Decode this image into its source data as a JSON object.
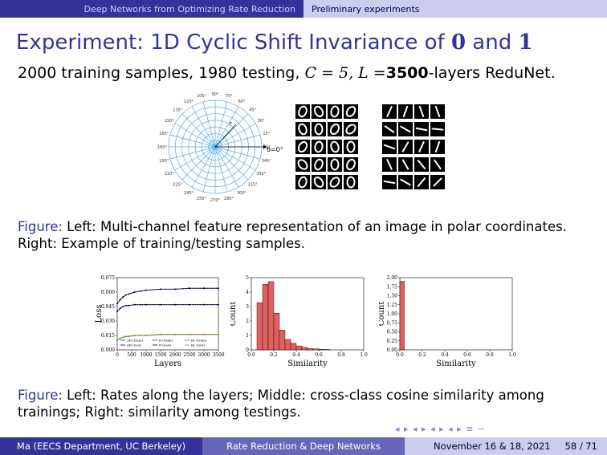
{
  "header": {
    "section_left": "Deep Networks from Optimizing Rate Reduction",
    "section_right": "Preliminary experiments"
  },
  "title": {
    "prefix": "Experiment: 1D Cyclic Shift Invariance of ",
    "zero": "0",
    "and": " and ",
    "one": "1"
  },
  "subtitle": {
    "part1": "2000 training samples, 1980 testing, ",
    "c_eq": "C = 5, L =",
    "layers": "3500",
    "part2": "-layers ReduNet."
  },
  "polar": {
    "angle_labels": [
      "0°",
      "15°",
      "30°",
      "45°",
      "60°",
      "75°",
      "90°",
      "105°",
      "120°",
      "135°",
      "150°",
      "165°",
      "180°",
      "195°",
      "210°",
      "225°",
      "240°",
      "255°",
      "270°",
      "285°",
      "300°",
      "315°",
      "330°",
      "345°"
    ],
    "center_label": "θ=0°",
    "r_label": "r"
  },
  "caption1": {
    "label": "Figure:",
    "text": " Left: Multi-channel feature representation of an image in polar coordinates. Right: Example of training/testing samples."
  },
  "chart_data": [
    {
      "type": "line",
      "xlabel": "Layers",
      "ylabel": "Loss",
      "xticks": [
        "0",
        "500",
        "1000",
        "1500",
        "2000",
        "2500",
        "3000",
        "3500"
      ],
      "yticks": [
        "0.000",
        "0.015",
        "0.030",
        "0.045",
        "0.060",
        "0.075"
      ],
      "xlim": [
        0,
        3500
      ],
      "ylim": [
        0,
        0.075
      ],
      "x": [
        0,
        100,
        200,
        300,
        400,
        600,
        800,
        1000,
        1500,
        2000,
        2500,
        3000,
        3500
      ],
      "series": [
        {
          "name": "ΔR (train)",
          "color": "#1f3fbf",
          "values": [
            0.048,
            0.052,
            0.055,
            0.057,
            0.058,
            0.06,
            0.061,
            0.062,
            0.063,
            0.063,
            0.064,
            0.064,
            0.064
          ]
        },
        {
          "name": "ΔR (test)",
          "color": "#000000",
          "values": [
            0.048,
            0.052,
            0.055,
            0.057,
            0.058,
            0.06,
            0.061,
            0.062,
            0.063,
            0.063,
            0.064,
            0.064,
            0.064
          ]
        },
        {
          "name": "R (train)",
          "color": "#1f3fbf",
          "values": [
            0.04,
            0.043,
            0.045,
            0.046,
            0.046,
            0.047,
            0.047,
            0.047,
            0.047,
            0.047,
            0.047,
            0.047,
            0.047
          ]
        },
        {
          "name": "R (test)",
          "color": "#000000",
          "values": [
            0.04,
            0.043,
            0.045,
            0.046,
            0.046,
            0.047,
            0.047,
            0.047,
            0.047,
            0.047,
            0.047,
            0.047,
            0.047
          ]
        },
        {
          "name": "Rc (train)",
          "color": "#cc3333",
          "values": [
            0.01,
            0.012,
            0.013,
            0.014,
            0.014,
            0.015,
            0.015,
            0.015,
            0.016,
            0.016,
            0.016,
            0.016,
            0.016
          ]
        },
        {
          "name": "Rc (test)",
          "color": "#33aa33",
          "values": [
            0.01,
            0.012,
            0.013,
            0.014,
            0.014,
            0.015,
            0.015,
            0.015,
            0.016,
            0.016,
            0.016,
            0.016,
            0.016
          ]
        }
      ],
      "legend": "bottom-right"
    },
    {
      "type": "bar",
      "xlabel": "Similarity",
      "ylabel": "Count",
      "xticks": [
        "0.0",
        "0.2",
        "0.4",
        "0.6",
        "0.8",
        "1.0"
      ],
      "yticks": [
        "0",
        "1",
        "2",
        "3",
        "4",
        "5"
      ],
      "xlim": [
        0,
        1
      ],
      "ylim": [
        0,
        5.5
      ],
      "bin_width": 0.05,
      "bins": [
        0.05,
        0.1,
        0.15,
        0.2,
        0.25,
        0.3,
        0.35,
        0.4,
        0.45,
        0.5,
        0.55,
        0.6,
        0.65
      ],
      "values": [
        3.6,
        5.0,
        5.2,
        2.8,
        1.5,
        0.8,
        0.5,
        0.3,
        0.2,
        0.1,
        0.08,
        0.05,
        0.03
      ],
      "color": "#e06060"
    },
    {
      "type": "bar",
      "xlabel": "Similarity",
      "ylabel": "Count",
      "xticks": [
        "0.0",
        "0.2",
        "0.4",
        "0.6",
        "0.8",
        "1.0"
      ],
      "yticks": [
        "0.00",
        "0.25",
        "0.50",
        "0.75",
        "1.00",
        "1.25",
        "1.50",
        "1.75",
        "2.00"
      ],
      "xlim": [
        0,
        1
      ],
      "ylim": [
        0,
        2.0
      ],
      "bin_width": 0.04,
      "bins": [
        0.0
      ],
      "values": [
        1.9
      ],
      "color": "#e06060"
    }
  ],
  "caption2": {
    "label": "Figure:",
    "text": " Left: Rates along the layers; Middle: cross-class cosine similarity among trainings; Right: similarity among testings."
  },
  "footer": {
    "author": "Ma (EECS Department, UC Berkeley)",
    "short_title": "Rate Reduction & Deep Networks",
    "date": "November 16 & 18, 2021",
    "page": "58 / 71"
  }
}
